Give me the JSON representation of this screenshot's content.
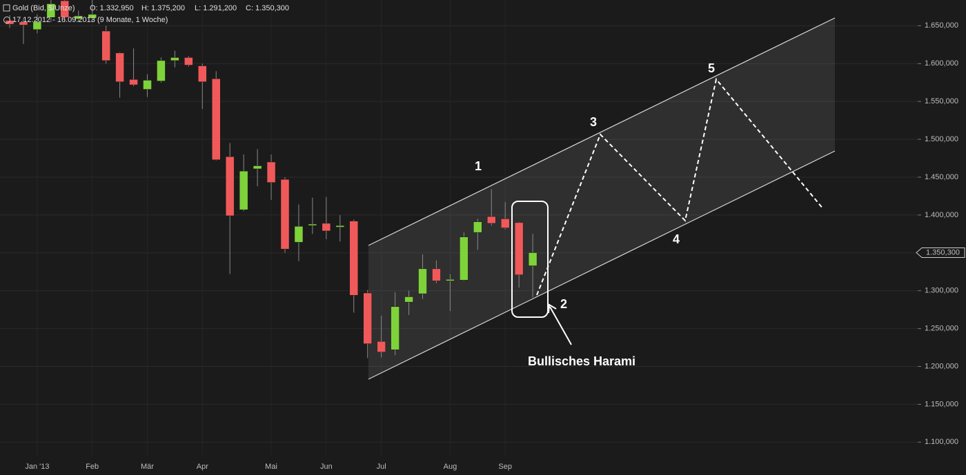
{
  "chart_data": {
    "type": "candlestick",
    "instrument": "Gold (Bid, $/Unze)",
    "ohlc_header": [
      "O: 1.332,950",
      "H: 1.375,200",
      "L: 1.291,200",
      "C: 1.350,300"
    ],
    "period": "17.12.2012 - 16.09.2013 (9 Monate, 1 Woche)",
    "categories": [
      null,
      null,
      "Jan '13",
      null,
      null,
      null,
      "Feb",
      null,
      null,
      null,
      "Mär",
      null,
      null,
      null,
      "Apr",
      null,
      null,
      null,
      null,
      "Mai",
      null,
      null,
      null,
      "Jun",
      null,
      null,
      null,
      "Jul",
      null,
      null,
      null,
      null,
      "Aug",
      null,
      null,
      null,
      "Sep",
      null,
      null
    ],
    "series": [
      {
        "name": "Gold (Bid, $/Unze)",
        "up_color": "#7ed23a",
        "down_color": "#f0595a",
        "open": [
          1657,
          1655,
          1645,
          1661,
          1683,
          1659,
          1660,
          1643,
          1614,
          1579,
          1566,
          1577,
          1604,
          1608,
          1597,
          1580,
          1477,
          1407,
          1461,
          1470,
          1447,
          1364,
          1387,
          1389,
          1384,
          1392,
          1297,
          1233,
          1222,
          1285,
          1296,
          1329,
          1313,
          1314,
          1377,
          1398,
          1395,
          1390,
          1332.95
        ],
        "high": [
          1664,
          1660,
          1665,
          1684,
          1684,
          1670,
          1684,
          1650,
          1615,
          1620,
          1586,
          1608,
          1617,
          1610,
          1600,
          1590,
          1495,
          1480,
          1487,
          1480,
          1450,
          1414,
          1423,
          1424,
          1400,
          1394,
          1301,
          1267,
          1298,
          1300,
          1348,
          1340,
          1322,
          1377,
          1395,
          1434,
          1417,
          1391,
          1375.2
        ],
        "low": [
          1647,
          1626,
          1640,
          1655,
          1655,
          1655,
          1655,
          1600,
          1555,
          1570,
          1556,
          1575,
          1595,
          1596,
          1540,
          1472,
          1322,
          1405,
          1438,
          1420,
          1350,
          1339,
          1375,
          1368,
          1365,
          1271,
          1211,
          1212,
          1215,
          1268,
          1289,
          1310,
          1273,
          1313,
          1354,
          1386,
          1381,
          1304,
          1291.2
        ],
        "close": [
          1652,
          1651,
          1655,
          1679,
          1661,
          1663,
          1665,
          1604,
          1576,
          1572,
          1578,
          1604,
          1608,
          1598,
          1576,
          1473,
          1399,
          1458,
          1465,
          1443,
          1355,
          1385,
          1388,
          1379,
          1386,
          1294,
          1230,
          1219,
          1279,
          1292,
          1329,
          1313,
          1315,
          1371,
          1391,
          1389,
          1383,
          1321,
          1350.3
        ]
      }
    ],
    "last_price": {
      "value": 1350.3,
      "label": "1.350,300"
    },
    "ylim": [
      1083,
      1684
    ],
    "yticks": [
      {
        "value": 1100,
        "label": "1.100,000"
      },
      {
        "value": 1150,
        "label": "1.150,000"
      },
      {
        "value": 1200,
        "label": "1.200,000"
      },
      {
        "value": 1250,
        "label": "1.250,000"
      },
      {
        "value": 1300,
        "label": "1.300,000"
      },
      {
        "value": 1350,
        "label": "1.350,000"
      },
      {
        "value": 1400,
        "label": "1.400,000"
      },
      {
        "value": 1450,
        "label": "1.450,000"
      },
      {
        "value": 1500,
        "label": "1.500,000"
      },
      {
        "value": 1550,
        "label": "1.550,000"
      },
      {
        "value": 1600,
        "label": "1.600,000"
      },
      {
        "value": 1650,
        "label": "1.650,000"
      }
    ],
    "grid": true,
    "annotations": {
      "waves": [
        "1",
        "2",
        "3",
        "4",
        "5"
      ],
      "pattern": "Bullisches Harami"
    }
  }
}
